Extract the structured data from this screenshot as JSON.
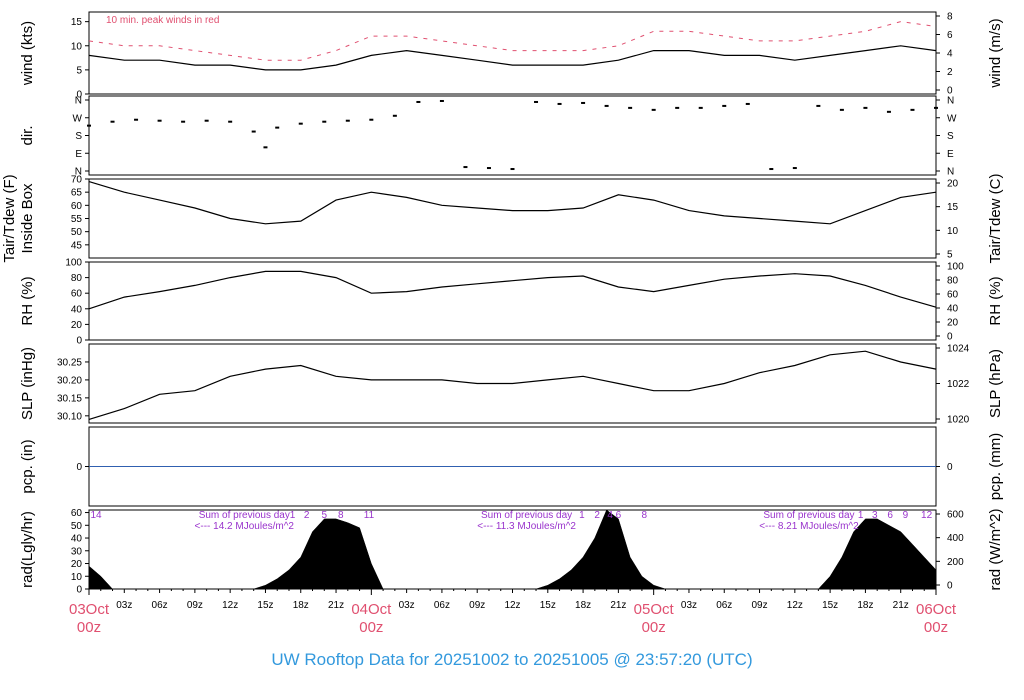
{
  "colors": {
    "series": "#000000",
    "peak": "#e05070",
    "pcp_line": "#3060b0",
    "rad_notes": "#9933cc",
    "day_labels": "#e05070",
    "footer": "#3399dd",
    "frame": "#000000"
  },
  "footer": {
    "title": "UW Rooftop Data for 20251002  to  20251005 @ 23:57:20  (UTC)"
  },
  "chart_data": [
    {
      "type": "line",
      "id": "wind",
      "ylabel_left": "wind (kts)",
      "ylabel_right": "wind (m/s)",
      "ylim": [
        0,
        17
      ],
      "yticks_left": [
        0,
        5,
        10,
        15
      ],
      "yticks_right": [
        "0",
        "2",
        "4",
        "6",
        "8"
      ],
      "annotation": "10 min. peak winds in red",
      "series": [
        {
          "name": "wind",
          "x": [
            0,
            3,
            6,
            9,
            12,
            15,
            18,
            21,
            24,
            27,
            30,
            33,
            36,
            39,
            42,
            45,
            48,
            51,
            54,
            57,
            60,
            63,
            66,
            69,
            72
          ],
          "y": [
            8,
            7,
            7,
            6,
            6,
            5,
            5,
            6,
            8,
            9,
            8,
            7,
            6,
            6,
            6,
            7,
            9,
            9,
            8,
            8,
            7,
            8,
            9,
            10,
            9
          ]
        },
        {
          "name": "peak",
          "x": [
            0,
            3,
            6,
            9,
            12,
            15,
            18,
            21,
            24,
            27,
            30,
            33,
            36,
            39,
            42,
            45,
            48,
            51,
            54,
            57,
            60,
            63,
            66,
            69,
            72
          ],
          "y": [
            11,
            10,
            10,
            9,
            8,
            7,
            7,
            9,
            12,
            12,
            11,
            10,
            9,
            9,
            9,
            10,
            13,
            13,
            12,
            11,
            11,
            12,
            13,
            15,
            14
          ]
        }
      ]
    },
    {
      "type": "scatter",
      "id": "dir",
      "ylabel_left": "dir.",
      "ylim": [
        0,
        360
      ],
      "yticks_left": [
        "N",
        "W",
        "S",
        "E",
        "N"
      ],
      "yticks_right": [
        "N",
        "W",
        "S",
        "E",
        "N"
      ],
      "series": [
        {
          "name": "direction",
          "x": [
            0,
            2,
            4,
            6,
            8,
            10,
            12,
            14,
            15,
            16,
            18,
            20,
            22,
            24,
            26,
            28,
            30,
            32,
            34,
            36,
            38,
            40,
            42,
            44,
            46,
            48,
            50,
            52,
            54,
            56,
            58,
            60,
            62,
            64,
            66,
            68,
            70,
            72
          ],
          "y": [
            230,
            250,
            260,
            255,
            250,
            255,
            250,
            200,
            120,
            220,
            240,
            250,
            255,
            260,
            280,
            350,
            355,
            20,
            15,
            10,
            350,
            340,
            345,
            330,
            320,
            310,
            320,
            320,
            330,
            340,
            10,
            15,
            330,
            310,
            320,
            300,
            310,
            320
          ]
        }
      ]
    },
    {
      "type": "line",
      "id": "temp",
      "ylabel_left": "Inside Box",
      "ylabel_outer": "Tair/Tdew (F)",
      "ylabel_right": "Tair/Tdew (C)",
      "ylim": [
        40,
        70
      ],
      "yticks_left": [
        45,
        50,
        55,
        60,
        65,
        70
      ],
      "yticks_right": [
        "5",
        "10",
        "15",
        "20"
      ],
      "series": [
        {
          "name": "temperature",
          "x": [
            0,
            3,
            6,
            9,
            12,
            15,
            18,
            21,
            24,
            27,
            30,
            33,
            36,
            39,
            42,
            45,
            48,
            51,
            54,
            57,
            60,
            63,
            66,
            69,
            72
          ],
          "y": [
            69,
            65,
            62,
            59,
            55,
            53,
            54,
            62,
            65,
            63,
            60,
            59,
            58,
            58,
            59,
            64,
            62,
            58,
            56,
            55,
            54,
            53,
            58,
            63,
            65
          ]
        }
      ]
    },
    {
      "type": "line",
      "id": "rh",
      "ylabel_left": "RH (%)",
      "ylabel_right": "RH (%)",
      "ylim": [
        0,
        100
      ],
      "yticks_left": [
        0,
        20,
        40,
        60,
        80,
        100
      ],
      "yticks_right": [
        "0",
        "20",
        "40",
        "60",
        "80",
        "100"
      ],
      "series": [
        {
          "name": "relative humidity",
          "x": [
            0,
            3,
            6,
            9,
            12,
            15,
            18,
            21,
            24,
            27,
            30,
            33,
            36,
            39,
            42,
            45,
            48,
            51,
            54,
            57,
            60,
            63,
            66,
            69,
            72
          ],
          "y": [
            40,
            55,
            62,
            70,
            80,
            88,
            88,
            80,
            60,
            62,
            68,
            72,
            76,
            80,
            82,
            68,
            62,
            70,
            78,
            82,
            85,
            82,
            70,
            55,
            42
          ]
        }
      ]
    },
    {
      "type": "line",
      "id": "slp",
      "ylabel_left": "SLP (inHg)",
      "ylabel_right": "SLP (hPa)",
      "ylim": [
        30.08,
        30.3
      ],
      "yticks_left": [
        30.1,
        30.15,
        30.2,
        30.25
      ],
      "yticks_right": [
        "1020",
        "1022",
        "1024"
      ],
      "series": [
        {
          "name": "sea level pressure",
          "x": [
            0,
            3,
            6,
            9,
            12,
            15,
            18,
            21,
            24,
            27,
            30,
            33,
            36,
            39,
            42,
            45,
            48,
            51,
            54,
            57,
            60,
            63,
            66,
            69,
            72
          ],
          "y": [
            30.09,
            30.12,
            30.16,
            30.17,
            30.21,
            30.23,
            30.24,
            30.21,
            30.2,
            30.2,
            30.2,
            30.19,
            30.19,
            30.2,
            30.21,
            30.19,
            30.17,
            30.17,
            30.19,
            30.22,
            30.24,
            30.27,
            30.28,
            30.25,
            30.23
          ]
        }
      ]
    },
    {
      "type": "line",
      "id": "pcp",
      "ylabel_left": "pcp. (in)",
      "ylabel_right": "pcp. (mm)",
      "ylim": [
        -1,
        1
      ],
      "yticks_left": [
        0
      ],
      "yticks_right": [
        "0"
      ],
      "series": [
        {
          "name": "precipitation",
          "x": [
            0,
            72
          ],
          "y": [
            0,
            0
          ]
        }
      ]
    },
    {
      "type": "area",
      "id": "rad",
      "ylabel_left": "rad(Lgly/hr)",
      "ylabel_right": "rad (W/m^2)",
      "ylim": [
        0,
        62
      ],
      "yticks_left": [
        0,
        10,
        20,
        30,
        40,
        50,
        60
      ],
      "yticks_right": [
        "0",
        "200",
        "400",
        "600"
      ],
      "series": [
        {
          "name": "solar radiation",
          "x": [
            0,
            1,
            2,
            3,
            14,
            15,
            16,
            17,
            18,
            19,
            20,
            21,
            22,
            23,
            24,
            25,
            38,
            39,
            40,
            41,
            42,
            43,
            44,
            45,
            46,
            47,
            48,
            49,
            62,
            63,
            64,
            65,
            66,
            67,
            68,
            69,
            70,
            71,
            72
          ],
          "y": [
            18,
            10,
            0,
            0,
            0,
            3,
            8,
            15,
            25,
            45,
            55,
            55,
            52,
            48,
            20,
            0,
            0,
            3,
            8,
            15,
            25,
            40,
            62,
            55,
            25,
            10,
            3,
            0,
            0,
            10,
            25,
            45,
            55,
            55,
            50,
            45,
            35,
            25,
            15
          ]
        }
      ],
      "day_notes": [
        {
          "x": 13.2,
          "text": "Sum of previous day"
        },
        {
          "x": 37.2,
          "text": "Sum of previous day"
        },
        {
          "x": 61.2,
          "text": "Sum of previous day"
        }
      ],
      "day_totals": [
        {
          "x": 13.2,
          "text": "<--- 14.2 MJoules/m^2"
        },
        {
          "x": 37.2,
          "text": "<--- 11.3 MJoules/m^2"
        },
        {
          "x": 61.2,
          "text": "<--- 8.21 MJoules/m^2"
        }
      ],
      "hour_marks": [
        {
          "x": 0.6,
          "text": "14"
        },
        {
          "x": 17.3,
          "text": "1"
        },
        {
          "x": 18.5,
          "text": "2"
        },
        {
          "x": 20.0,
          "text": "5"
        },
        {
          "x": 21.4,
          "text": "8"
        },
        {
          "x": 23.8,
          "text": "11"
        },
        {
          "x": 41.9,
          "text": "1"
        },
        {
          "x": 43.2,
          "text": "2"
        },
        {
          "x": 44.3,
          "text": "4"
        },
        {
          "x": 45.0,
          "text": "6"
        },
        {
          "x": 47.2,
          "text": "8"
        },
        {
          "x": 65.6,
          "text": "1"
        },
        {
          "x": 66.8,
          "text": "3"
        },
        {
          "x": 68.1,
          "text": "6"
        },
        {
          "x": 69.4,
          "text": "9"
        },
        {
          "x": 71.2,
          "text": "12"
        }
      ]
    }
  ],
  "x_axis": {
    "range": [
      0,
      72
    ],
    "hour_ticks": [
      {
        "x": 3,
        "label": "03z"
      },
      {
        "x": 6,
        "label": "06z"
      },
      {
        "x": 9,
        "label": "09z"
      },
      {
        "x": 12,
        "label": "12z"
      },
      {
        "x": 15,
        "label": "15z"
      },
      {
        "x": 18,
        "label": "18z"
      },
      {
        "x": 21,
        "label": "21z"
      },
      {
        "x": 27,
        "label": "03z"
      },
      {
        "x": 30,
        "label": "06z"
      },
      {
        "x": 33,
        "label": "09z"
      },
      {
        "x": 36,
        "label": "12z"
      },
      {
        "x": 39,
        "label": "15z"
      },
      {
        "x": 42,
        "label": "18z"
      },
      {
        "x": 45,
        "label": "21z"
      },
      {
        "x": 51,
        "label": "03z"
      },
      {
        "x": 54,
        "label": "06z"
      },
      {
        "x": 57,
        "label": "09z"
      },
      {
        "x": 60,
        "label": "12z"
      },
      {
        "x": 63,
        "label": "15z"
      },
      {
        "x": 66,
        "label": "18z"
      },
      {
        "x": 69,
        "label": "21z"
      }
    ],
    "day_ticks": [
      {
        "x": 0,
        "day": "03Oct",
        "hour": "00z"
      },
      {
        "x": 24,
        "day": "04Oct",
        "hour": "00z"
      },
      {
        "x": 48,
        "day": "05Oct",
        "hour": "00z"
      },
      {
        "x": 72,
        "day": "06Oct",
        "hour": "00z"
      }
    ]
  }
}
